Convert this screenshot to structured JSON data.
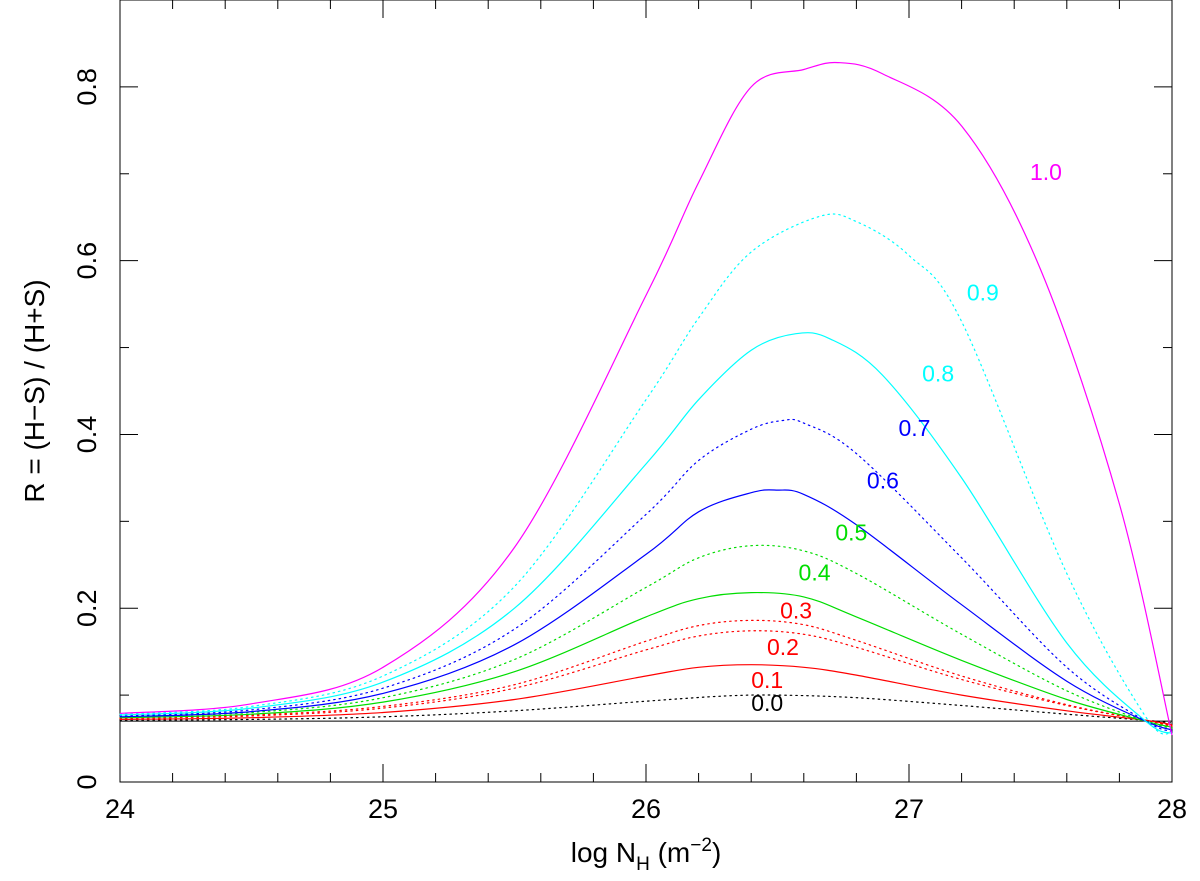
{
  "chart_data": {
    "type": "line",
    "title": "",
    "xlabel": {
      "main": "log N",
      "sub": "H",
      "units_open": " (m",
      "units_sup": "−2",
      "units_close": ")"
    },
    "ylabel": "R = (H−S) / (H+S)",
    "xlim": [
      24,
      28
    ],
    "ylim": [
      0,
      0.9
    ],
    "x_ticks": [
      24,
      25,
      26,
      27,
      28
    ],
    "y_ticks": [
      0,
      0.2,
      0.4,
      0.6,
      0.8
    ],
    "x_tick_labels": [
      "24",
      "25",
      "26",
      "27",
      "28"
    ],
    "y_tick_labels": [
      "0",
      "0.2",
      "0.4",
      "0.6",
      "0.8"
    ],
    "x_minor_step": 0.2,
    "y_minor_step": 0.1,
    "baseline": {
      "y": 0.07,
      "color": "#000000"
    },
    "series": [
      {
        "name": "0.0",
        "label": "0.0",
        "color": "#000000",
        "dash": "dotted",
        "label_x": 26.4,
        "label_y": 0.082,
        "x": [
          24,
          24.5,
          25,
          25.5,
          26,
          26.3,
          26.5,
          26.8,
          27.2,
          27.6,
          27.9,
          28
        ],
        "y": [
          0.071,
          0.072,
          0.075,
          0.082,
          0.093,
          0.099,
          0.1,
          0.097,
          0.088,
          0.078,
          0.071,
          0.068
        ]
      },
      {
        "name": "0.1",
        "label": "0.1",
        "color": "#ff0000",
        "dash": "solid",
        "label_x": 26.4,
        "label_y": 0.108,
        "x": [
          24,
          24.5,
          25,
          25.5,
          26,
          26.2,
          26.4,
          26.6,
          26.8,
          27.2,
          27.6,
          27.9,
          28
        ],
        "y": [
          0.072,
          0.074,
          0.08,
          0.095,
          0.122,
          0.132,
          0.135,
          0.132,
          0.123,
          0.1,
          0.082,
          0.071,
          0.066
        ]
      },
      {
        "name": "0.2",
        "label": "0.2",
        "color": "#ff0000",
        "dash": "dotted",
        "label_x": 26.46,
        "label_y": 0.146,
        "x": [
          24,
          24.5,
          25,
          25.5,
          26,
          26.2,
          26.4,
          26.6,
          26.8,
          27.2,
          27.6,
          27.9,
          28
        ],
        "y": [
          0.073,
          0.076,
          0.085,
          0.108,
          0.152,
          0.168,
          0.174,
          0.17,
          0.155,
          0.118,
          0.088,
          0.071,
          0.065
        ]
      },
      {
        "name": "0.3",
        "label": "0.3",
        "color": "#ff0000",
        "dash": "dotted",
        "label_x": 26.51,
        "label_y": 0.188,
        "x": [
          24,
          24.5,
          25,
          25.5,
          26,
          26.2,
          26.4,
          26.6,
          26.8,
          27.2,
          27.6,
          27.9,
          28
        ],
        "y": [
          0.0735,
          0.077,
          0.087,
          0.112,
          0.162,
          0.18,
          0.186,
          0.181,
          0.163,
          0.122,
          0.089,
          0.071,
          0.064
        ]
      },
      {
        "name": "0.4",
        "label": "0.4",
        "color": "#00dd00",
        "dash": "solid",
        "label_x": 26.58,
        "label_y": 0.232,
        "x": [
          24,
          24.5,
          25,
          25.5,
          26,
          26.2,
          26.4,
          26.6,
          26.8,
          27.2,
          27.6,
          27.9,
          28
        ],
        "y": [
          0.074,
          0.078,
          0.092,
          0.127,
          0.19,
          0.211,
          0.218,
          0.213,
          0.19,
          0.14,
          0.095,
          0.07,
          0.063
        ]
      },
      {
        "name": "0.5",
        "label": "0.5",
        "color": "#00dd00",
        "dash": "dotted",
        "label_x": 26.72,
        "label_y": 0.278,
        "x": [
          24,
          24.5,
          25,
          25.5,
          26,
          26.2,
          26.4,
          26.6,
          26.8,
          27.2,
          27.6,
          27.9,
          28
        ],
        "y": [
          0.075,
          0.08,
          0.097,
          0.141,
          0.224,
          0.258,
          0.272,
          0.266,
          0.24,
          0.17,
          0.105,
          0.07,
          0.062
        ]
      },
      {
        "name": "0.6",
        "label": "0.6",
        "color": "#0000ff",
        "dash": "solid",
        "label_x": 26.84,
        "label_y": 0.338,
        "x": [
          24,
          24.5,
          25,
          25.5,
          26,
          26.2,
          26.4,
          26.5,
          26.6,
          26.8,
          27.2,
          27.6,
          27.9,
          28
        ],
        "y": [
          0.075,
          0.081,
          0.102,
          0.158,
          0.262,
          0.311,
          0.333,
          0.336,
          0.331,
          0.296,
          0.204,
          0.116,
          0.07,
          0.06
        ]
      },
      {
        "name": "0.7",
        "label": "0.7",
        "color": "#0000ff",
        "dash": "dotted",
        "label_x": 26.96,
        "label_y": 0.398,
        "x": [
          24,
          24.5,
          25,
          25.5,
          26,
          26.2,
          26.4,
          26.52,
          26.6,
          26.8,
          27.2,
          27.6,
          27.9,
          28
        ],
        "y": [
          0.076,
          0.083,
          0.108,
          0.176,
          0.308,
          0.37,
          0.406,
          0.416,
          0.413,
          0.378,
          0.258,
          0.132,
          0.07,
          0.058
        ]
      },
      {
        "name": "0.8",
        "label": "0.8",
        "color": "#00ffff",
        "dash": "solid",
        "label_x": 27.05,
        "label_y": 0.461,
        "x": [
          24,
          24.5,
          25,
          25.5,
          26,
          26.2,
          26.4,
          26.57,
          26.7,
          26.9,
          27.2,
          27.6,
          27.9,
          28
        ],
        "y": [
          0.077,
          0.085,
          0.115,
          0.2,
          0.366,
          0.44,
          0.497,
          0.516,
          0.51,
          0.468,
          0.35,
          0.16,
          0.07,
          0.056
        ]
      },
      {
        "name": "0.9",
        "label": "0.9",
        "color": "#00ffff",
        "dash": "dotted",
        "label_x": 27.22,
        "label_y": 0.554,
        "x": [
          24,
          24.5,
          25,
          25.5,
          26,
          26.2,
          26.4,
          26.66,
          26.8,
          27.0,
          27.2,
          27.6,
          27.9,
          28
        ],
        "y": [
          0.078,
          0.087,
          0.122,
          0.225,
          0.44,
          0.534,
          0.61,
          0.651,
          0.645,
          0.606,
          0.53,
          0.24,
          0.075,
          0.056
        ]
      },
      {
        "name": "1.0",
        "label": "1.0",
        "color": "#ff00ff",
        "dash": "solid",
        "label_x": 27.46,
        "label_y": 0.693,
        "x": [
          24,
          24.5,
          25,
          25.5,
          26,
          26.2,
          26.4,
          26.6,
          26.73,
          26.9,
          27.2,
          27.5,
          27.8,
          28
        ],
        "y": [
          0.079,
          0.09,
          0.132,
          0.27,
          0.56,
          0.69,
          0.8,
          0.82,
          0.828,
          0.815,
          0.755,
          0.59,
          0.32,
          0.054
        ]
      }
    ]
  }
}
